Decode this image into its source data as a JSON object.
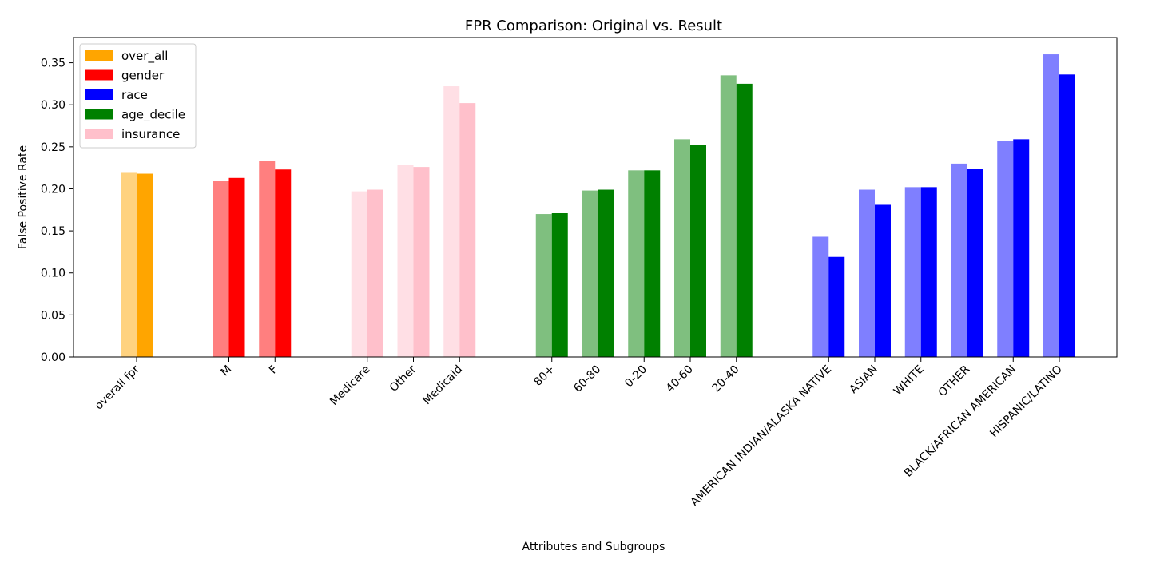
{
  "chart_data": {
    "type": "bar",
    "title": "FPR Comparison: Original vs. Result",
    "xlabel": "Attributes and Subgroups",
    "ylabel": "False Positive Rate",
    "ylim": [
      0,
      0.38
    ],
    "yticks": [
      "0.00",
      "0.05",
      "0.10",
      "0.15",
      "0.20",
      "0.25",
      "0.30",
      "0.35"
    ],
    "grid": false,
    "legend_position": "top-left",
    "legend": [
      {
        "name": "over_all",
        "color": "#FFA500"
      },
      {
        "name": "gender",
        "color": "#FF0000"
      },
      {
        "name": "race",
        "color": "#0000FF"
      },
      {
        "name": "age_decile",
        "color": "#008000"
      },
      {
        "name": "insurance",
        "color": "#FFC0CB"
      }
    ],
    "categories": [
      {
        "label": "overall fpr",
        "group": "over_all",
        "original": 0.219,
        "result": 0.218
      },
      {
        "label": "M",
        "group": "gender",
        "original": 0.209,
        "result": 0.213
      },
      {
        "label": "F",
        "group": "gender",
        "original": 0.233,
        "result": 0.223
      },
      {
        "label": "Medicare",
        "group": "insurance",
        "original": 0.197,
        "result": 0.199
      },
      {
        "label": "Other",
        "group": "insurance",
        "original": 0.228,
        "result": 0.226
      },
      {
        "label": "Medicaid",
        "group": "insurance",
        "original": 0.322,
        "result": 0.302
      },
      {
        "label": "80+",
        "group": "age_decile",
        "original": 0.17,
        "result": 0.171
      },
      {
        "label": "60-80",
        "group": "age_decile",
        "original": 0.198,
        "result": 0.199
      },
      {
        "label": "0-20",
        "group": "age_decile",
        "original": 0.222,
        "result": 0.222
      },
      {
        "label": "40-60",
        "group": "age_decile",
        "original": 0.259,
        "result": 0.252
      },
      {
        "label": "20-40",
        "group": "age_decile",
        "original": 0.335,
        "result": 0.325
      },
      {
        "label": "AMERICAN INDIAN/ALASKA NATIVE",
        "group": "race",
        "original": 0.143,
        "result": 0.119
      },
      {
        "label": "ASIAN",
        "group": "race",
        "original": 0.199,
        "result": 0.181
      },
      {
        "label": "WHITE",
        "group": "race",
        "original": 0.202,
        "result": 0.202
      },
      {
        "label": "OTHER",
        "group": "race",
        "original": 0.23,
        "result": 0.224
      },
      {
        "label": "BLACK/AFRICAN AMERICAN",
        "group": "race",
        "original": 0.257,
        "result": 0.259
      },
      {
        "label": "HISPANIC/LATINO",
        "group": "race",
        "original": 0.36,
        "result": 0.336
      }
    ]
  }
}
